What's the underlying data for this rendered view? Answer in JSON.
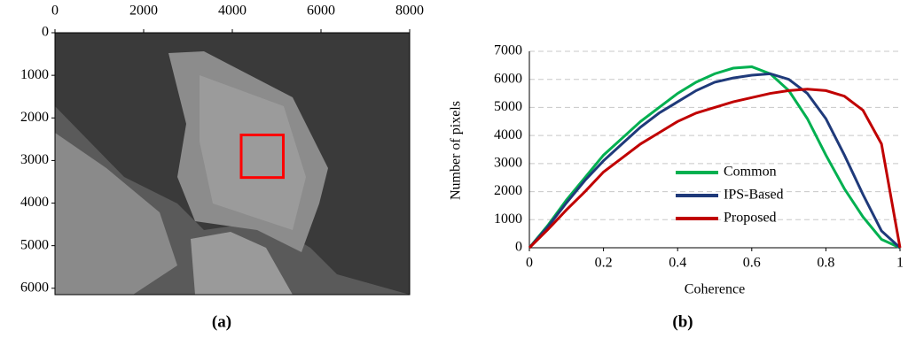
{
  "chart_data": [
    {
      "type": "image",
      "label": "(a)",
      "xlim": [
        0,
        8000
      ],
      "xticks": [
        0,
        2000,
        4000,
        6000,
        8000
      ],
      "ylim": [
        0,
        6150
      ],
      "yticks": [
        0,
        1000,
        2000,
        3000,
        4000,
        5000,
        6000
      ],
      "highlight_box": {
        "x": [
          4200,
          5150
        ],
        "y": [
          2400,
          3400
        ],
        "color": "#ff0000"
      }
    },
    {
      "type": "line",
      "label": "(b)",
      "x_label": "Coherence",
      "y_label": "Number of pixels",
      "x": [
        0,
        0.05,
        0.1,
        0.15,
        0.2,
        0.25,
        0.3,
        0.35,
        0.4,
        0.45,
        0.5,
        0.55,
        0.6,
        0.65,
        0.7,
        0.75,
        0.8,
        0.85,
        0.9,
        0.95,
        1
      ],
      "xlim": [
        0,
        1
      ],
      "xticks": [
        0,
        0.2,
        0.4,
        0.6,
        0.8,
        1
      ],
      "ylim": [
        0,
        7000
      ],
      "yticks": [
        0,
        1000,
        2000,
        3000,
        4000,
        5000,
        6000,
        7000
      ],
      "grid": true,
      "legend": "center",
      "series": [
        {
          "name": "Common",
          "color": "#00b050",
          "values": [
            0,
            800,
            1700,
            2500,
            3300,
            3900,
            4500,
            5000,
            5500,
            5900,
            6200,
            6400,
            6450,
            6200,
            5600,
            4600,
            3300,
            2100,
            1100,
            300,
            0
          ]
        },
        {
          "name": "IPS-Based",
          "color": "#1f3a7a",
          "values": [
            0,
            750,
            1600,
            2400,
            3100,
            3700,
            4300,
            4800,
            5200,
            5600,
            5900,
            6050,
            6150,
            6200,
            6000,
            5500,
            4600,
            3300,
            1900,
            600,
            0
          ]
        },
        {
          "name": "Proposed",
          "color": "#c00000",
          "values": [
            0,
            650,
            1350,
            2000,
            2700,
            3200,
            3700,
            4100,
            4500,
            4800,
            5000,
            5200,
            5350,
            5500,
            5600,
            5650,
            5600,
            5400,
            4900,
            3700,
            0
          ]
        }
      ]
    }
  ]
}
